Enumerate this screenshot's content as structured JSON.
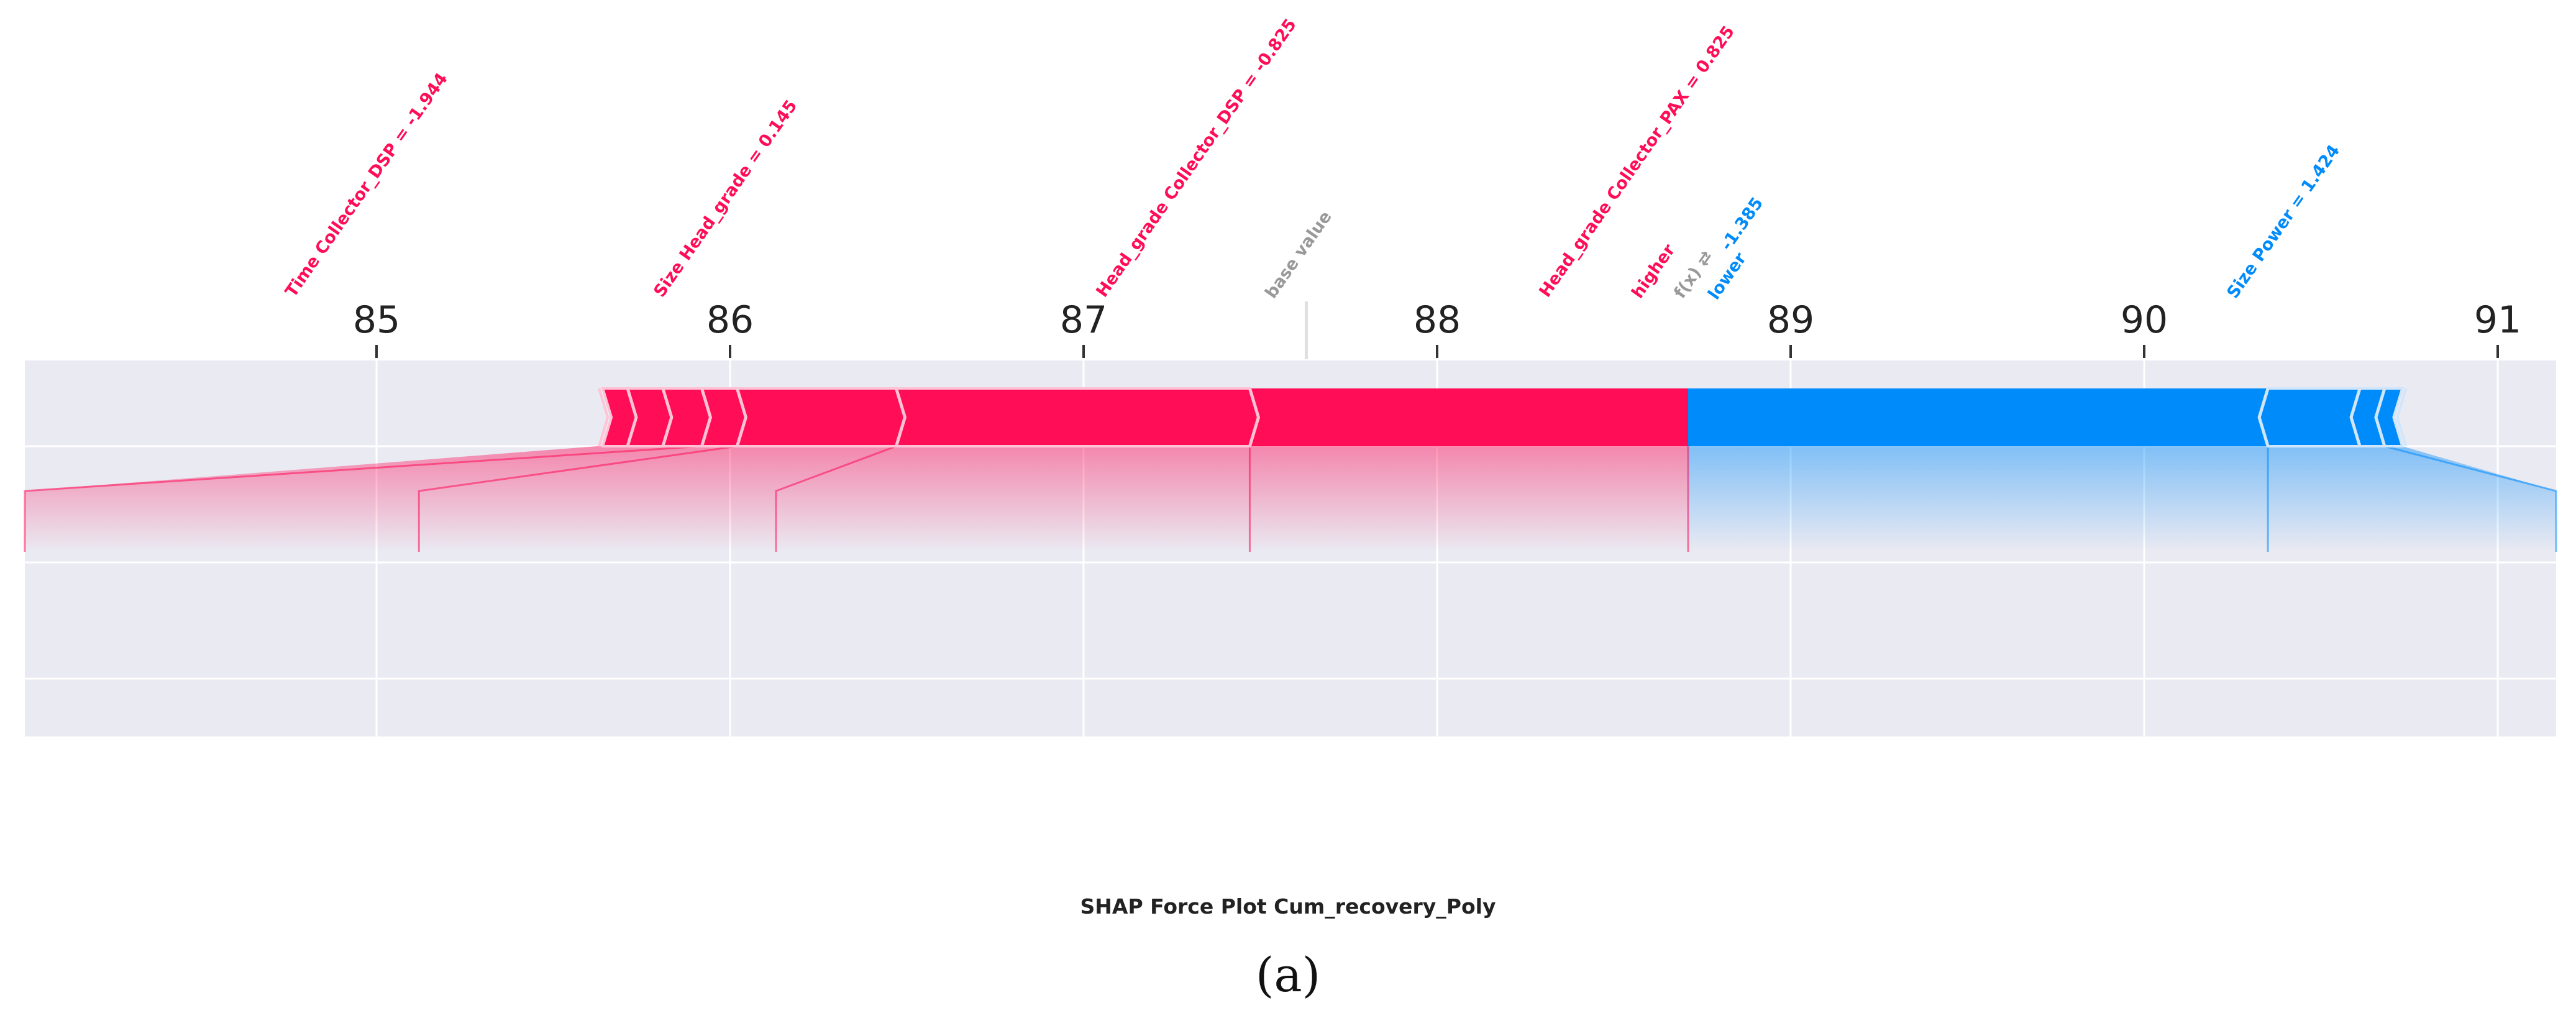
{
  "chart_data": {
    "type": "force",
    "title": "SHAP Force Plot Cum_recovery_Poly",
    "caption": "(a)",
    "xlim": [
      84.0,
      91.15
    ],
    "x_ticks": [
      85,
      86,
      87,
      88,
      89,
      90,
      91
    ],
    "base_value": 87.63,
    "fx": 88.71,
    "grid": true,
    "labels": {
      "base_value": "base value",
      "fx": "f(x)",
      "higher": "higher",
      "lower": "lower",
      "arrow": "⇄"
    },
    "colors": {
      "positive": "#ff0d57",
      "negative": "#008bfb",
      "background": "#eaeaf2",
      "neutral": "#999999"
    },
    "positive_features": [
      {
        "label": "Head_grade Collector_PAX = 0.825",
        "start": 87.47,
        "end": 88.71
      },
      {
        "label": "Head_grade Collector_DSP = -0.825",
        "start": 86.47,
        "end": 87.47
      },
      {
        "label": "Size Head_grade = 0.145",
        "start": 86.02,
        "end": 86.47
      },
      {
        "label": "Time Collector_DSP = -1.944",
        "start": 85.92,
        "end": 86.02
      },
      {
        "label": "",
        "start": 85.81,
        "end": 85.92
      },
      {
        "label": "",
        "start": 85.71,
        "end": 85.81
      },
      {
        "label": "",
        "start": 85.64,
        "end": 85.71
      }
    ],
    "negative_features": [
      {
        "label": "Size Power = 1.424",
        "start": 88.71,
        "end": 90.35
      },
      {
        "label": "",
        "start": 90.35,
        "end": 90.61
      },
      {
        "label": "",
        "start": 90.61,
        "end": 90.68
      },
      {
        "label": "",
        "start": 90.68,
        "end": 90.73
      }
    ]
  }
}
